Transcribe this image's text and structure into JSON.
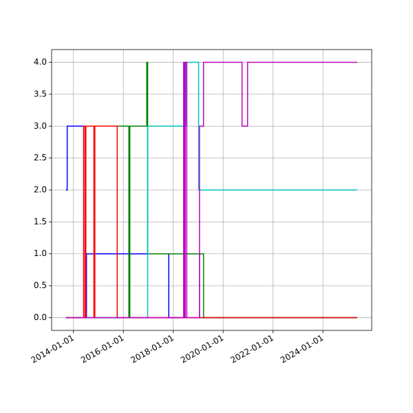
{
  "chart_data": {
    "type": "step",
    "xlim": [
      "2013-02-15",
      "2025-12-15"
    ],
    "xticks": [
      "2014-01-01",
      "2016-01-01",
      "2018-01-01",
      "2020-01-01",
      "2022-01-01",
      "2024-01-01"
    ],
    "ylim": [
      -0.2,
      4.2
    ],
    "yticks": [
      {
        "value": 0,
        "label": "0.0"
      },
      {
        "value": 0.5,
        "label": "0.5"
      },
      {
        "value": 1,
        "label": "1.0"
      },
      {
        "value": 1.5,
        "label": "1.5"
      },
      {
        "value": 2,
        "label": "2.0"
      },
      {
        "value": 2.5,
        "label": "2.5"
      },
      {
        "value": 3,
        "label": "3.0"
      },
      {
        "value": 3.5,
        "label": "3.5"
      },
      {
        "value": 4,
        "label": "4.0"
      }
    ],
    "grid": true,
    "series": [
      {
        "color": "#0000ff",
        "x": [
          "2013-09-12",
          "2013-10-01",
          "2014-05-30",
          "2014-07-10",
          "2017-10-27",
          "2018-06-13",
          "2019-01-20",
          "2025-05-15"
        ],
        "values": [
          2,
          3,
          0,
          1,
          0,
          1,
          0,
          0
        ]
      },
      {
        "color": "#008000",
        "x": [
          "2013-09-12",
          "2015-10-03",
          "2016-03-22",
          "2016-04-05",
          "2016-12-09",
          "2016-12-22",
          "2019-03-20",
          "2025-05-15"
        ],
        "values": [
          0,
          3,
          0,
          3,
          4,
          1,
          0,
          0
        ]
      },
      {
        "color": "#00bfbf",
        "x": [
          "2013-09-12",
          "2016-12-22",
          "2018-07-05",
          "2019-01-07",
          "2025-05-15"
        ],
        "values": [
          0,
          3,
          4,
          2,
          2
        ]
      },
      {
        "color": "#ff0000",
        "x": [
          "2013-09-12",
          "2014-05-30",
          "2014-06-20",
          "2014-07-01",
          "2014-10-27",
          "2014-11-10",
          "2015-10-03",
          "2025-05-15"
        ],
        "values": [
          0,
          3,
          0,
          3,
          0,
          3,
          0,
          0
        ]
      },
      {
        "color": "#bf00bf",
        "x": [
          "2013-09-12",
          "2018-06-02",
          "2018-06-13",
          "2018-06-25",
          "2018-07-18",
          "2019-01-20",
          "2019-03-20",
          "2020-10-04",
          "2020-12-24",
          "2025-05-15"
        ],
        "values": [
          0,
          4,
          0,
          4,
          0,
          3,
          4,
          3,
          4,
          4
        ]
      }
    ]
  }
}
